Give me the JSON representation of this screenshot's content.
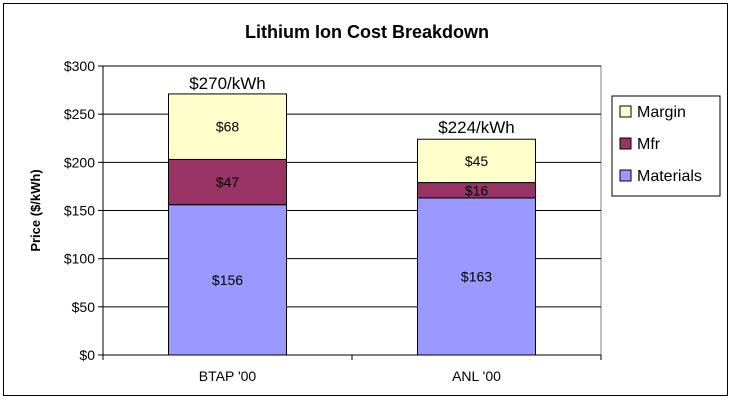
{
  "chart_data": {
    "type": "bar",
    "stacked": true,
    "title": "Lithium Ion Cost Breakdown",
    "xlabel": "",
    "ylabel": "Price ($/kWh)",
    "ylim": [
      0,
      300
    ],
    "ytick_step": 50,
    "ytick_labels": [
      "$0",
      "$50",
      "$100",
      "$150",
      "$200",
      "$250",
      "$300"
    ],
    "categories": [
      "BTAP '00",
      "ANL '00"
    ],
    "totals": [
      270,
      224
    ],
    "total_labels": [
      "$270/kWh",
      "$224/kWh"
    ],
    "series": [
      {
        "name": "Materials",
        "values": [
          156,
          163
        ],
        "labels": [
          "$156",
          "$163"
        ],
        "color": "#9999ff"
      },
      {
        "name": "Mfr",
        "values": [
          47,
          16
        ],
        "labels": [
          "$47",
          "$16"
        ],
        "color": "#993366"
      },
      {
        "name": "Margin",
        "values": [
          68,
          45
        ],
        "labels": [
          "$68",
          "$45"
        ],
        "color": "#ffffcc"
      }
    ],
    "legend_order": [
      "Margin",
      "Mfr",
      "Materials"
    ],
    "legend_position": "right",
    "grid": true,
    "plot_background": "#ffffff"
  }
}
